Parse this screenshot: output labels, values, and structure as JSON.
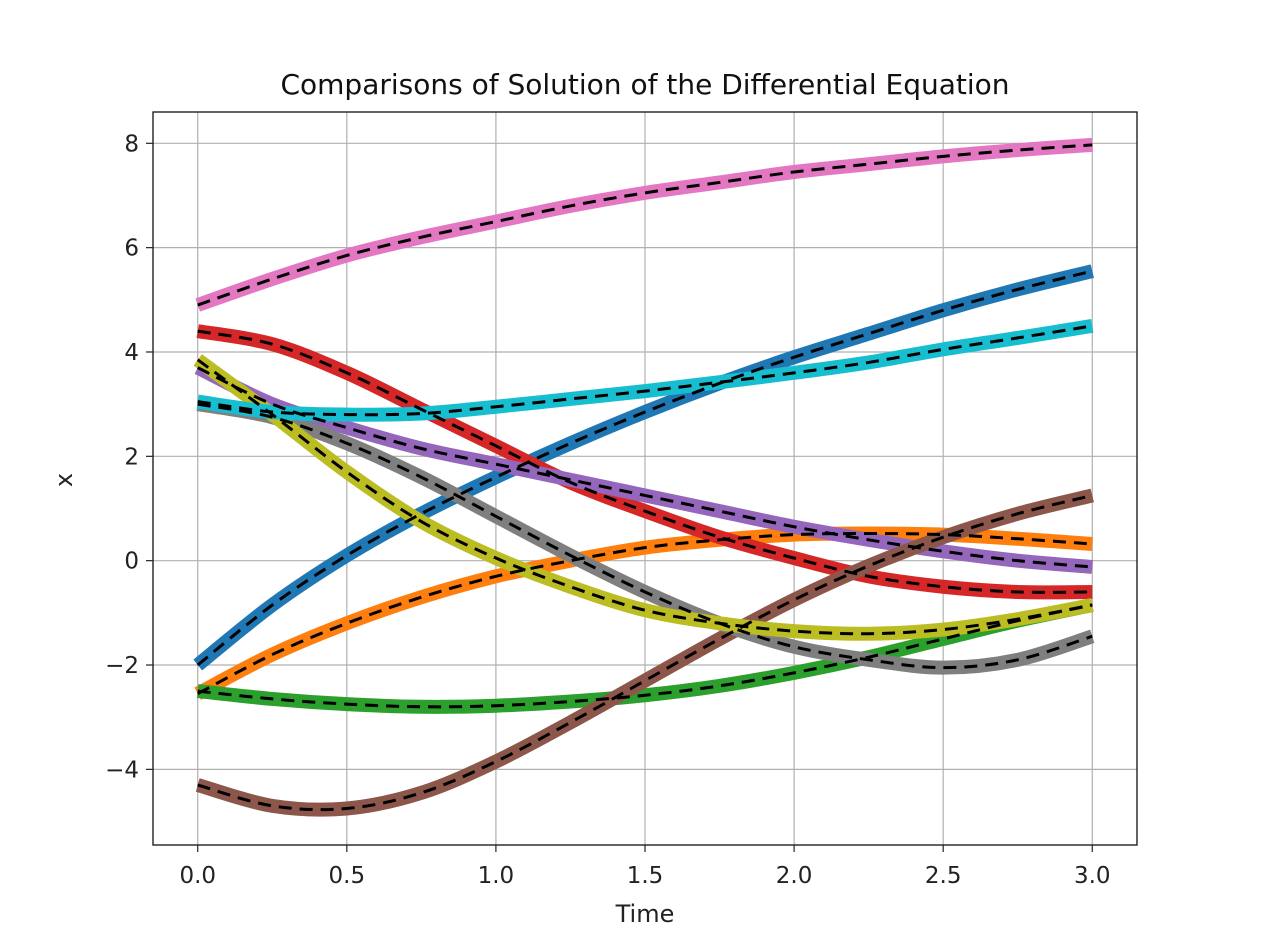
{
  "chart_data": {
    "type": "line",
    "title": "Comparisons of Solution of the Differential Equation",
    "xlabel": "Time",
    "ylabel": "x",
    "xlim": [
      -0.15,
      3.15
    ],
    "ylim": [
      -5.45,
      8.6
    ],
    "x_ticks": [
      0.0,
      0.5,
      1.0,
      1.5,
      2.0,
      2.5,
      3.0
    ],
    "x_tick_labels": [
      "0.0",
      "0.5",
      "1.0",
      "1.5",
      "2.0",
      "2.5",
      "3.0"
    ],
    "y_ticks": [
      -4,
      -2,
      0,
      2,
      4,
      6,
      8
    ],
    "y_tick_labels": [
      "−4",
      "−2",
      "0",
      "2",
      "4",
      "6",
      "8"
    ],
    "grid": true,
    "overlay_style": "black dashed line over each colored solution",
    "x": [
      0.0,
      0.25,
      0.5,
      0.75,
      1.0,
      1.25,
      1.5,
      1.75,
      2.0,
      2.25,
      2.5,
      2.75,
      3.0
    ],
    "series": [
      {
        "color": "#1f77b4",
        "values": [
          -2.0,
          -0.85,
          0.1,
          0.9,
          1.6,
          2.25,
          2.85,
          3.4,
          3.9,
          4.35,
          4.8,
          5.2,
          5.55
        ]
      },
      {
        "color": "#ff7f0e",
        "values": [
          -2.55,
          -1.8,
          -1.2,
          -0.7,
          -0.3,
          0.0,
          0.25,
          0.4,
          0.5,
          0.52,
          0.5,
          0.42,
          0.32
        ]
      },
      {
        "color": "#2ca02c",
        "values": [
          -2.5,
          -2.65,
          -2.75,
          -2.8,
          -2.78,
          -2.7,
          -2.58,
          -2.4,
          -2.15,
          -1.85,
          -1.5,
          -1.15,
          -0.85
        ]
      },
      {
        "color": "#d62728",
        "values": [
          4.4,
          4.15,
          3.6,
          2.9,
          2.2,
          1.5,
          0.95,
          0.45,
          0.05,
          -0.3,
          -0.5,
          -0.6,
          -0.6
        ]
      },
      {
        "color": "#9467bd",
        "values": [
          3.7,
          3.0,
          2.55,
          2.15,
          1.85,
          1.55,
          1.25,
          0.95,
          0.65,
          0.4,
          0.18,
          0.0,
          -0.12
        ]
      },
      {
        "color": "#8c564b",
        "values": [
          -4.3,
          -4.7,
          -4.75,
          -4.45,
          -3.85,
          -3.1,
          -2.3,
          -1.5,
          -0.75,
          -0.1,
          0.45,
          0.9,
          1.25
        ]
      },
      {
        "color": "#e377c2",
        "values": [
          4.9,
          5.4,
          5.85,
          6.2,
          6.5,
          6.8,
          7.05,
          7.25,
          7.45,
          7.6,
          7.75,
          7.87,
          7.97
        ]
      },
      {
        "color": "#7f7f7f",
        "values": [
          3.0,
          2.75,
          2.25,
          1.6,
          0.85,
          0.1,
          -0.6,
          -1.2,
          -1.65,
          -1.9,
          -2.05,
          -1.9,
          -1.45
        ]
      },
      {
        "color": "#bcbd22",
        "values": [
          3.85,
          2.8,
          1.7,
          0.75,
          0.05,
          -0.5,
          -0.95,
          -1.2,
          -1.35,
          -1.4,
          -1.32,
          -1.12,
          -0.85
        ]
      },
      {
        "color": "#17becf",
        "values": [
          3.05,
          2.85,
          2.8,
          2.82,
          2.95,
          3.1,
          3.25,
          3.42,
          3.6,
          3.8,
          4.05,
          4.27,
          4.5
        ]
      }
    ]
  }
}
